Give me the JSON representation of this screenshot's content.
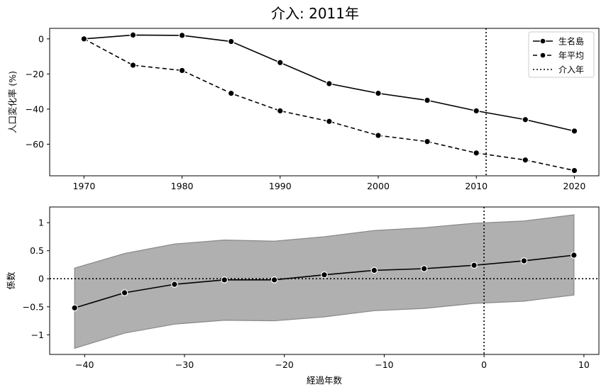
{
  "figure": {
    "title": "介入: 2011年"
  },
  "chart_data": [
    {
      "type": "line",
      "ylabel": "人口変化率 (%)",
      "x": [
        1970,
        1975,
        1980,
        1985,
        1990,
        1995,
        2000,
        2005,
        2010,
        2015,
        2020
      ],
      "xlim": [
        1966.5,
        2022.5
      ],
      "ylim": [
        -78,
        6
      ],
      "xticks": [
        1970,
        1980,
        1990,
        2000,
        2010,
        2020
      ],
      "yticks": [
        0,
        -20,
        -40,
        -60
      ],
      "series": [
        {
          "name": "生名島",
          "style": "solid",
          "values": [
            0,
            2.2,
            2.0,
            -1.5,
            -13.5,
            -25.5,
            -31,
            -35,
            -41,
            -46,
            -52.5
          ]
        },
        {
          "name": "年平均",
          "style": "dashed",
          "values": [
            0,
            -15,
            -18,
            -31,
            -41,
            -47,
            -55,
            -58.5,
            -65,
            -69,
            -75
          ]
        }
      ],
      "vline": {
        "name": "介入年",
        "x": 2011,
        "style": "dotted"
      },
      "legend": "top-right",
      "line_color": "#000000"
    },
    {
      "type": "line",
      "xlabel": "経過年数",
      "ylabel": "係数",
      "x": [
        -41,
        -36,
        -31,
        -26,
        -21,
        -16,
        -11,
        -6,
        -1,
        4,
        9
      ],
      "values": [
        -0.52,
        -0.25,
        -0.1,
        -0.02,
        -0.02,
        0.07,
        0.15,
        0.18,
        0.24,
        0.32,
        0.42
      ],
      "ci_upper": [
        0.19,
        0.45,
        0.62,
        0.69,
        0.67,
        0.75,
        0.86,
        0.91,
        0.99,
        1.03,
        1.14
      ],
      "ci_lower": [
        -1.24,
        -0.97,
        -0.81,
        -0.74,
        -0.75,
        -0.68,
        -0.57,
        -0.53,
        -0.44,
        -0.4,
        -0.29
      ],
      "xlim": [
        -43.5,
        11.5
      ],
      "ylim": [
        -1.35,
        1.28
      ],
      "xticks": [
        -40,
        -30,
        -20,
        -10,
        0,
        10
      ],
      "yticks": [
        1.0,
        0.5,
        0.0,
        -0.5,
        -1.0
      ],
      "hline": {
        "y": 0,
        "style": "dotted"
      },
      "vline": {
        "x": 0,
        "style": "dotted"
      },
      "band_color": "#b0b0b0",
      "line_color": "#000000"
    }
  ]
}
